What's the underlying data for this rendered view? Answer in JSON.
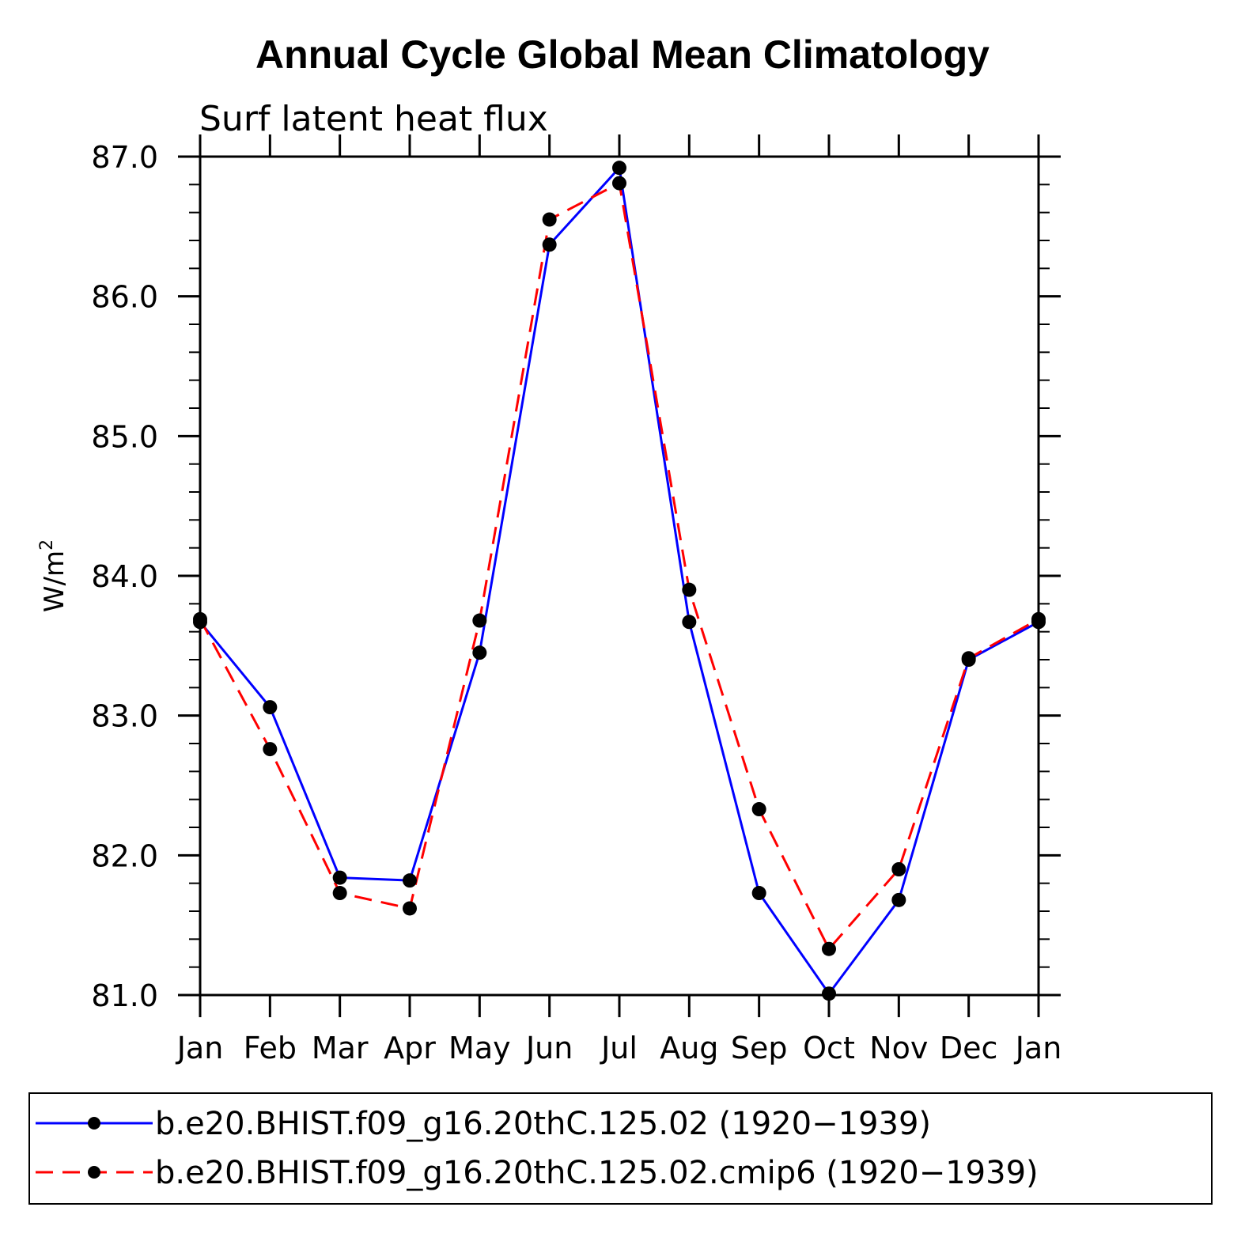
{
  "chart_data": {
    "type": "line",
    "title": "Annual Cycle Global Mean Climatology",
    "subtitle": "Surf latent heat flux",
    "xlabel": "",
    "ylabel": "W/m",
    "ylabel_superscript": "2",
    "categories": [
      "Jan",
      "Feb",
      "Mar",
      "Apr",
      "May",
      "Jun",
      "Jul",
      "Aug",
      "Sep",
      "Oct",
      "Nov",
      "Dec",
      "Jan"
    ],
    "ylim": [
      81.0,
      87.0
    ],
    "yticks": [
      "81.0",
      "82.0",
      "83.0",
      "84.0",
      "85.0",
      "86.0",
      "87.0"
    ],
    "series": [
      {
        "name": "b.e20.BHIST.f09_g16.20thC.125.02 (1920−1939)",
        "color": "#0000ff",
        "dash": "solid",
        "values": [
          83.67,
          83.06,
          81.84,
          81.82,
          83.45,
          86.37,
          86.92,
          83.67,
          81.73,
          81.01,
          81.68,
          83.4,
          83.67
        ]
      },
      {
        "name": "b.e20.BHIST.f09_g16.20thC.125.02.cmip6 (1920−1939)",
        "color": "#ff0000",
        "dash": "dashed",
        "values": [
          83.69,
          82.76,
          81.73,
          81.62,
          83.68,
          86.55,
          86.81,
          83.9,
          82.33,
          81.33,
          81.9,
          83.41,
          83.69
        ]
      }
    ]
  }
}
